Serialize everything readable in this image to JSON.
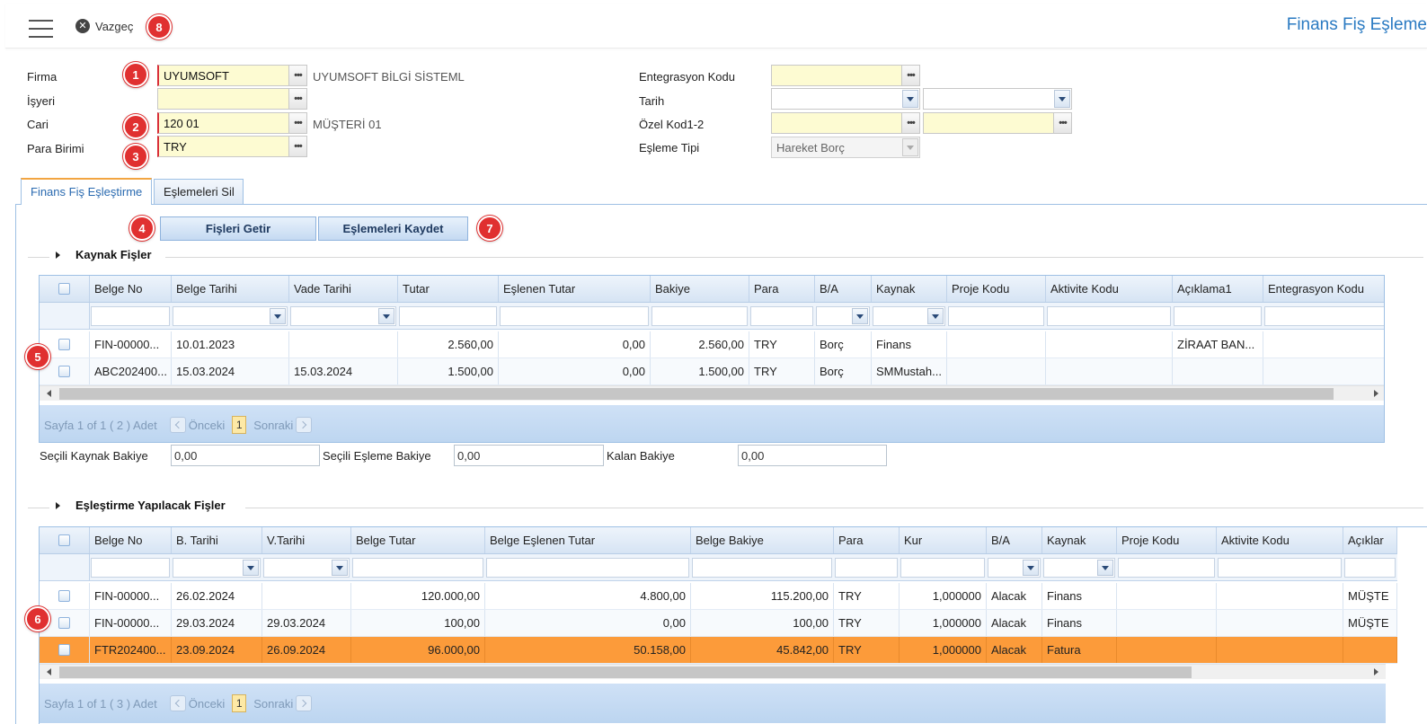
{
  "header": {
    "cancel_label": "Vazgeç",
    "title": "Finans Fiş Eşleme"
  },
  "markers": [
    "1",
    "2",
    "3",
    "4",
    "5",
    "6",
    "7",
    "8"
  ],
  "form": {
    "firma": {
      "label": "Firma",
      "value": "UYUMSOFT",
      "desc": "UYUMSOFT BİLGİ SİSTEML"
    },
    "isyeri": {
      "label": "İşyeri",
      "value": ""
    },
    "cari": {
      "label": "Cari",
      "value": "120 01",
      "desc": "MÜŞTERİ 01"
    },
    "para_birimi": {
      "label": "Para Birimi",
      "value": "TRY"
    },
    "entegrasyon_kodu": {
      "label": "Entegrasyon Kodu",
      "value": ""
    },
    "tarih": {
      "label": "Tarih",
      "value1": "",
      "value2": ""
    },
    "ozel_kod": {
      "label": "Özel Kod1-2",
      "value1": "",
      "value2": ""
    },
    "esleme_tipi": {
      "label": "Eşleme Tipi",
      "value": "Hareket Borç"
    }
  },
  "tabs": [
    {
      "label": "Finans Fiş Eşleştirme",
      "active": true
    },
    {
      "label": "Eşlemeleri Sil",
      "active": false
    }
  ],
  "actions": {
    "fetch_label": "Fişleri Getir",
    "save_label": "Eşlemeleri Kaydet"
  },
  "source": {
    "title": "Kaynak Fişler",
    "columns": [
      "Belge No",
      "Belge Tarihi",
      "Vade Tarihi",
      "Tutar",
      "Eşlenen Tutar",
      "Bakiye",
      "Para",
      "B/A",
      "Kaynak",
      "Proje Kodu",
      "Aktivite Kodu",
      "Açıklama1",
      "Entegrasyon Kodu"
    ],
    "rows": [
      [
        "FIN-00000...",
        "10.01.2023",
        "",
        "2.560,00",
        "0,00",
        "2.560,00",
        "TRY",
        "Borç",
        "Finans",
        "",
        "",
        "ZİRAAT BAN...",
        ""
      ],
      [
        "ABC202400...",
        "15.03.2024",
        "15.03.2024",
        "1.500,00",
        "0,00",
        "1.500,00",
        "TRY",
        "Borç",
        "SMMustah...",
        "",
        "",
        "",
        ""
      ]
    ],
    "pager": {
      "summary": "Sayfa 1 of 1 ( 2 ) Adet",
      "prev": "Önceki",
      "page": "1",
      "next": "Sonraki"
    }
  },
  "balances": {
    "selected_source_label": "Seçili Kaynak Bakiye",
    "selected_source_value": "0,00",
    "selected_match_label": "Seçili Eşleme Bakiye",
    "selected_match_value": "0,00",
    "remaining_label": "Kalan Bakiye",
    "remaining_value": "0,00"
  },
  "target": {
    "title": "Eşleştirme Yapılacak Fişler",
    "columns": [
      "Belge No",
      "B. Tarihi",
      "V.Tarihi",
      "Belge Tutar",
      "Belge Eşlenen Tutar",
      "Belge Bakiye",
      "Para",
      "Kur",
      "B/A",
      "Kaynak",
      "Proje Kodu",
      "Aktivite Kodu",
      "Açıklar"
    ],
    "rows": [
      [
        "FIN-00000...",
        "26.02.2024",
        "",
        "120.000,00",
        "4.800,00",
        "115.200,00",
        "TRY",
        "1,000000",
        "Alacak",
        "Finans",
        "",
        "",
        "MÜŞTE"
      ],
      [
        "FIN-00000...",
        "29.03.2024",
        "29.03.2024",
        "100,00",
        "0,00",
        "100,00",
        "TRY",
        "1,000000",
        "Alacak",
        "Finans",
        "",
        "",
        "MÜŞTE"
      ],
      [
        "FTR202400...",
        "23.09.2024",
        "26.09.2024",
        "96.000,00",
        "50.158,00",
        "45.842,00",
        "TRY",
        "1,000000",
        "Alacak",
        "Fatura",
        "",
        "",
        ""
      ]
    ],
    "highlighted_row_color": "#fc9b3a",
    "pager": {
      "summary": "Sayfa 1 of 1 ( 3 ) Adet",
      "prev": "Önceki",
      "page": "1",
      "next": "Sonraki"
    }
  },
  "colors": {
    "accent": "#2a7ac2",
    "marker": "#e03030",
    "required_field": "#fdfbd2"
  }
}
